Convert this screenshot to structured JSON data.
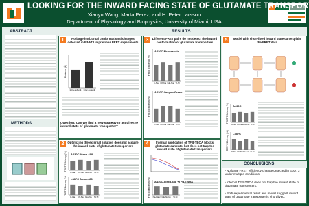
{
  "header": {
    "title": "LOOKING FOR THE INWARD FACING STATE OF GLUTAMATE TRANSPORTERS",
    "authors": "Xiaoyu Wang, Marta Perez, and H. Peter Larsson",
    "department": "Department of Physiology and Biophysics, University of Miami, USA"
  },
  "sections": {
    "abstract": "ABSTRACT",
    "methods": "METHODS",
    "results": "RESULTS",
    "conclusions": "CONCLUSIONS"
  },
  "panels": [
    {
      "number": "1",
      "title": "No large horizontal conformational changes detected in EAAT3 in previous FRET experiments",
      "question": "Question: Can we find a new strategy to acquire the inward state of glutamate transporter?"
    },
    {
      "number": "2",
      "title": "Optimizing the external solution does not acquire the inward state of glutamate transporters"
    },
    {
      "number": "3",
      "title": "Different FRET pairs do not detect the inward conformation of glutamate transporters"
    },
    {
      "number": "4",
      "title": "Internal application of TFB-TBOA blocks glutamate currents, but does not trap the inward state of glutamate transporters"
    },
    {
      "number": "5",
      "title": "Model with short-lived inward state can explain the FRET data"
    }
  ],
  "charts": [
    {
      "label": "",
      "ylabel": "Distance (Å)",
      "categories": [
        "Intra-subunit",
        "Inter-subunit"
      ],
      "values": [
        38,
        55
      ],
      "ylim": [
        0,
        70
      ],
      "color": "#333333"
    },
    {
      "label": "A430C Alexa-488",
      "ylabel": "FRET Efficiency (%)",
      "categories": [
        "K-Na",
        "Ch-Na",
        "Glu-Na",
        "Tl-Tc"
      ],
      "values": [
        6,
        7,
        6,
        7
      ],
      "ylim": [
        0,
        12
      ],
      "color": "#777777"
    },
    {
      "label": "L387C Alexa-488",
      "ylabel": "FRET Efficiency (%)",
      "categories": [
        "K-Na",
        "Ch-Na",
        "Glu-Na",
        "Tl-Tc"
      ],
      "values": [
        7,
        6,
        7,
        6
      ],
      "ylim": [
        0,
        12
      ],
      "color": "#777777"
    },
    {
      "label": "A430C Fluorescein",
      "ylabel": "FRET Efficiency (%)",
      "categories": [
        "K-Na",
        "Ch-Na",
        "Glu-Na",
        "Tl-Tc"
      ],
      "values": [
        6,
        7,
        6,
        7
      ],
      "ylim": [
        0,
        12
      ],
      "color": "#777777"
    },
    {
      "label": "A430C Oregon Green",
      "ylabel": "FRET Efficiency (%)",
      "categories": [
        "K-Na",
        "Ch-Na",
        "Glu-Na",
        "Tl-Tc"
      ],
      "values": [
        5,
        6,
        6,
        5
      ],
      "ylim": [
        0,
        12
      ],
      "color": "#777777"
    },
    {
      "label": "A430C Alexa-488 +TFB-TBOA",
      "ylabel": "FRET Efficiency (%)",
      "categories": [
        "Na-Na(c)",
        "Glu-Na(c)",
        "Tl-Tc"
      ],
      "values": [
        7,
        6,
        7
      ],
      "ylim": [
        0,
        12
      ],
      "color": "#777777"
    },
    {
      "label": "A430C",
      "ylabel": "FRET Efficiency (%)",
      "categories": [
        "K-Na",
        "Ch-Na",
        "Glu-Na",
        "Tl-Tc"
      ],
      "values": [
        6,
        7,
        6,
        7
      ],
      "ylim": [
        0,
        12
      ],
      "color": "#777777"
    },
    {
      "label": "L387C",
      "ylabel": "FRET Efficiency (%)",
      "categories": [
        "K-Na",
        "Ch-Na",
        "Glu-Na",
        "Tl-Tc"
      ],
      "values": [
        7,
        6,
        7,
        6
      ],
      "ylim": [
        0,
        12
      ],
      "color": "#777777"
    }
  ],
  "conclusions": [
    "No large FRET efficiency change detected in EAAT3 under multiple conditions.",
    "Internal TFB-TBOA does not trap the inward state of glutamate transporters.",
    "Both experimental result and model suggest inward state of glutamate transporter is short lived."
  ]
}
